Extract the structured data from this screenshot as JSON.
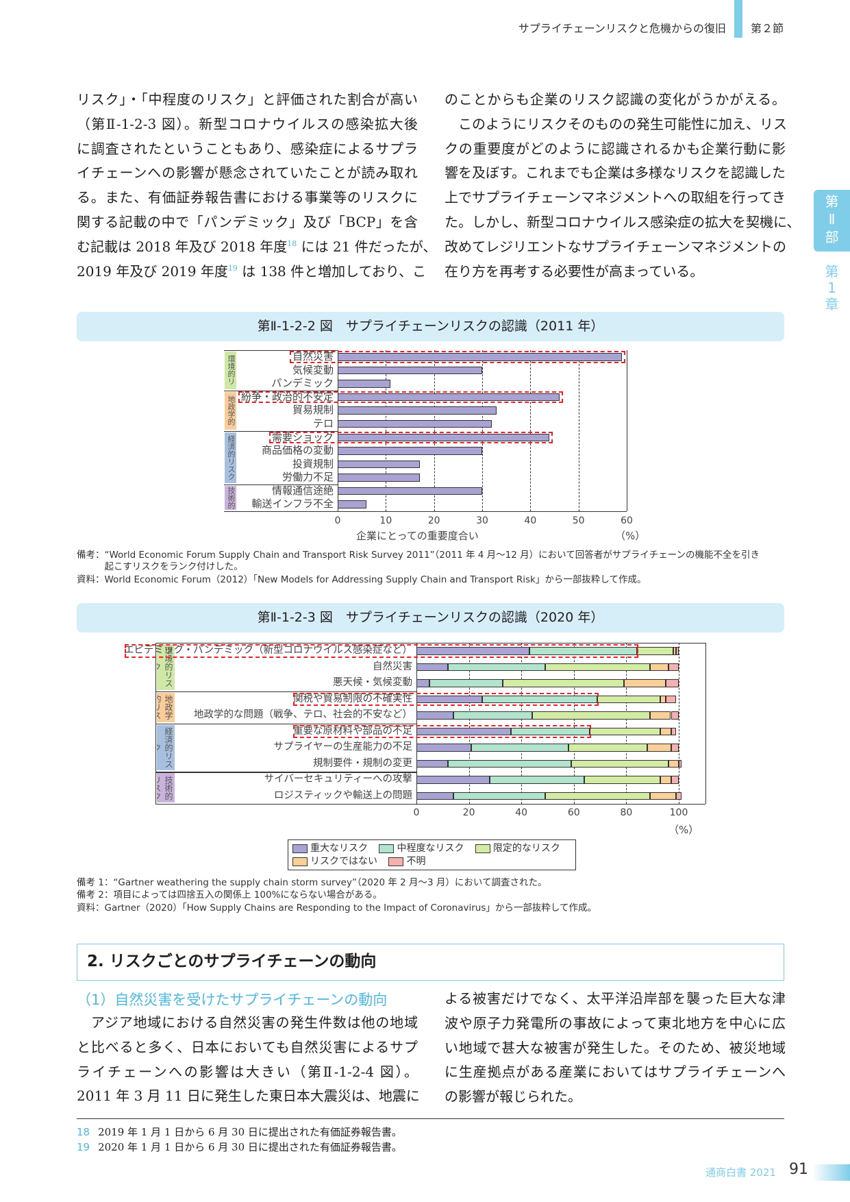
{
  "header": {
    "chapter_title": "サプライチェーンリスクと危機からの復旧",
    "section": "第２節"
  },
  "side_tab": {
    "part": [
      "第",
      "Ⅱ",
      "部"
    ],
    "chapter": [
      "第",
      "1",
      "章"
    ]
  },
  "body_top": {
    "left": [
      [
        {
          "t": "リスク」・「中程度のリスク」と評価された割合が高い"
        }
      ],
      [
        {
          "t": "（第Ⅱ-1-2-3 図）。新型コロナウイルスの感染拡大後"
        }
      ],
      [
        {
          "t": "に調査されたということもあり、感染症によるサプラ"
        }
      ],
      [
        {
          "t": "イチェーンへの影響が懸念されていたことが読み取れ"
        }
      ],
      [
        {
          "t": "る。また、有価証券報告書における事業等のリスクに"
        }
      ],
      [
        {
          "t": "関する記載の中で「パンデミック」及び「BCP」を含"
        }
      ],
      [
        {
          "t": "む記載は 2018 年及び 2018 年度"
        },
        {
          "sup": "18"
        },
        {
          "t": " には 21 件だったが、"
        }
      ],
      [
        {
          "t": "2019 年及び 2019 年度"
        },
        {
          "sup": "19"
        },
        {
          "t": " は 138 件と増加しており、こ"
        }
      ]
    ],
    "right": [
      [
        {
          "t": "のことからも企業のリスク認識の変化がうかがえる。"
        }
      ],
      [
        {
          "t": "　このようにリスクそのものの発生可能性に加え、リス"
        }
      ],
      [
        {
          "t": "クの重要度がどのように認識されるかも企業行動に影"
        }
      ],
      [
        {
          "t": "響を及ぼす。これまでも企業は多様なリスクを認識した"
        }
      ],
      [
        {
          "t": "上でサプライチェーンマネジメントへの取組を行ってき"
        }
      ],
      [
        {
          "t": "た。しかし、新型コロナウイルス感染症の拡大を契機に、"
        }
      ],
      [
        {
          "t": "改めてレジリエントなサプライチェーンマネジメントの"
        }
      ],
      [
        {
          "t": "在り方を再考する必要性が高まっている。",
          "last": true
        }
      ]
    ]
  },
  "chart_data": [
    {
      "type": "bar",
      "orientation": "horizontal",
      "title": "第Ⅱ-1-2-2 図　サプライチェーンリスクの認識（2011 年）",
      "xlabel": "企業にとっての重要度合い",
      "unit": "（%）",
      "xlim": [
        0,
        60
      ],
      "xticks": [
        "0",
        "10",
        "20",
        "30",
        "40",
        "50",
        "60"
      ],
      "grid": "vertical dashed",
      "color": "#a9a3d4",
      "highlight_color": "#e8202a",
      "groups": [
        {
          "name": "環境的リスク",
          "count": 3,
          "color": "#cfe8a6"
        },
        {
          "name": "地政学的リスク",
          "count": 3,
          "color": "#f9cc99"
        },
        {
          "name": "経済的リスク",
          "count": 4,
          "color": "#a8c0e0"
        },
        {
          "name": "技術的リスク",
          "count": 2,
          "color": "#c9b2dc"
        }
      ],
      "categories": [
        "自然災害",
        "気候変動",
        "パンデミック",
        "紛争・政治的不安定",
        "貿易規制",
        "テロ",
        "需要ショック",
        "商品価格の変動",
        "投資規制",
        "労働力不足",
        "情報通信途絶",
        "輸送インフラ不全"
      ],
      "values": [
        59,
        30,
        11,
        46,
        33,
        32,
        44,
        30,
        17,
        17,
        30,
        6
      ],
      "highlighted": [
        true,
        false,
        false,
        true,
        false,
        false,
        true,
        false,
        false,
        false,
        false,
        false
      ],
      "notes": [
        "備考：“World Economic Forum Supply Chain and Transport Risk Survey 2011”（2011 年 4 月〜12 月）において回答者がサプライチェーンの機能不全を引き",
        "　　　起こすリスクをランク付けした。",
        "資料：World Economic Forum（2012）「New Models for Addressing Supply Chain and Transport Risk」から一部抜粋して作成。"
      ]
    },
    {
      "type": "bar",
      "orientation": "horizontal",
      "stacked": true,
      "title": "第Ⅱ-1-2-3 図　サプライチェーンリスクの認識（2020 年）",
      "unit": "（%）",
      "xlim": [
        0,
        100
      ],
      "xticks": [
        "0",
        "20",
        "40",
        "60",
        "80",
        "100"
      ],
      "grid": "vertical dashed",
      "legend_position": "bottom",
      "highlight_color": "#e8202a",
      "groups": [
        {
          "name": "環境的リスク",
          "count": 3,
          "color": "#cfe8a6"
        },
        {
          "name": "地政学的リスク",
          "count": 2,
          "color": "#f9cc99"
        },
        {
          "name": "経済的リスク",
          "count": 3,
          "color": "#a8c0e0"
        },
        {
          "name": "技術的リスク",
          "count": 2,
          "color": "#c9b2dc"
        }
      ],
      "categories": [
        "エピデミック・パンデミック（新型コロナウイルス感染症など）",
        "自然災害",
        "悪天候・気候変動",
        "関税や貿易制限の不確実性",
        "地政学的な問題（戦争、テロ、社会的不安など）",
        "重要な原材料や部品の不足",
        "サプライヤーの生産能力の不足",
        "規制要件・規制の変更",
        "サイバーセキュリティーへの攻撃",
        "ロジスティックや輸送上の問題"
      ],
      "highlighted": [
        true,
        false,
        false,
        true,
        false,
        true,
        false,
        false,
        false,
        false
      ],
      "series": [
        {
          "name": "重大なリスク",
          "color": "#a9a3d4",
          "values": [
            43,
            12,
            5,
            25,
            14,
            36,
            21,
            12,
            28,
            14
          ]
        },
        {
          "name": "中程度なリスク",
          "color": "#b2e3cd",
          "values": [
            41,
            37,
            28,
            44,
            30,
            30,
            37,
            47,
            36,
            35
          ]
        },
        {
          "name": "限定的なリスク",
          "color": "#d4eba4",
          "values": [
            14,
            40,
            46,
            24,
            45,
            27,
            30,
            37,
            29,
            40
          ]
        },
        {
          "name": "リスクではない",
          "color": "#fbcf98",
          "values": [
            1,
            7,
            16,
            2,
            8,
            4,
            9,
            4,
            4,
            10
          ]
        },
        {
          "name": "不明",
          "color": "#f5b0b0",
          "values": [
            1,
            4,
            5,
            4,
            3,
            2,
            3,
            1,
            3,
            2
          ]
        }
      ],
      "notes": [
        "備考 1：“Gartner weathering the supply chain storm survey”（2020 年 2 月〜3 月）において調査された。",
        "備考 2：項目によっては四捨五入の関係上 100%にならない場合がある。",
        "資料：Gartner（2020）「How Supply Chains are Responding to the Impact of Coronavirus」から一部抜粋して作成。"
      ]
    }
  ],
  "section": {
    "heading": "2.  リスクごとのサプライチェーンの動向",
    "subheading": "（1）自然災害を受けたサプライチェーンの動向"
  },
  "body_bottom": {
    "left": [
      [
        {
          "t": "　アジア地域における自然災害の発生件数は他の地域"
        }
      ],
      [
        {
          "t": "と比べると多く、日本においても自然災害によるサプ"
        }
      ],
      [
        {
          "t": "ライチェーンへの影響は大きい（第Ⅱ-1-2-4 図）。"
        }
      ],
      [
        {
          "t": "2011 年 3 月 11 日に発生した東日本大震災は、地震に"
        }
      ]
    ],
    "right": [
      [
        {
          "t": "よる被害だけでなく、太平洋沿岸部を襲った巨大な津"
        }
      ],
      [
        {
          "t": "波や原子力発電所の事故によって東北地方を中心に広"
        }
      ],
      [
        {
          "t": "い地域で甚大な被害が発生した。そのため、被災地域"
        }
      ],
      [
        {
          "t": "に生産拠点がある産業においてはサプライチェーンへ"
        }
      ],
      [
        {
          "t": "の影響が報じられた。",
          "last": true
        }
      ]
    ]
  },
  "footnotes": [
    {
      "num": "18",
      "text": "2019 年 1 月 1 日から 6 月 30 日に提出された有価証券報告書。"
    },
    {
      "num": "19",
      "text": "2020 年 1 月 1 日から 6 月 30 日に提出された有価証券報告書。"
    }
  ],
  "footer": {
    "publication": "通商白書 2021",
    "page": "91"
  }
}
